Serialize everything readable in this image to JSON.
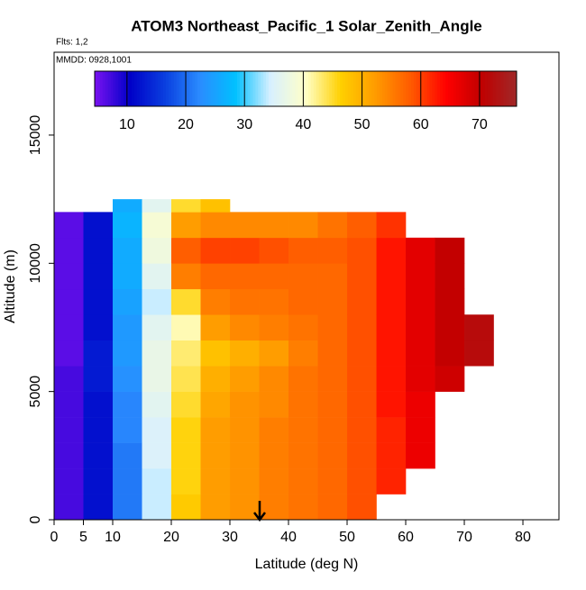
{
  "chart_data": {
    "type": "heatmap",
    "title": "ATOM3 Northeast_Pacific_1 Solar_Zenith_Angle",
    "subtitle": "Flts: 1,2",
    "annotation": "MMDD: 0928,1001",
    "x_label": "Latitude (deg N)",
    "y_label": "Altitude (m)",
    "xlim": [
      0,
      86.15
    ],
    "ylim": [
      0,
      18230
    ],
    "xticks": [
      0,
      5,
      10,
      20,
      30,
      40,
      50,
      60,
      70,
      80
    ],
    "yticks": [
      0,
      5000,
      10000,
      15000
    ],
    "x_edges": [
      0,
      5,
      10,
      15,
      20,
      25,
      30,
      35,
      40,
      45,
      50,
      55,
      60,
      65,
      70,
      75
    ],
    "y_edges": [
      0,
      1000,
      2000,
      3000,
      4000,
      5000,
      6000,
      7000,
      8000,
      9000,
      10000,
      11000,
      12000,
      12500
    ],
    "z": [
      [
        7,
        12,
        21,
        34,
        47,
        52,
        53,
        55,
        56,
        57,
        59,
        null,
        null,
        null,
        null
      ],
      [
        7,
        12,
        21,
        34,
        46,
        52,
        53,
        55,
        56,
        57,
        59,
        62,
        null,
        null,
        null
      ],
      [
        7,
        12,
        21,
        35,
        46,
        52,
        53,
        55,
        56,
        57,
        59,
        62,
        66,
        null,
        null
      ],
      [
        7,
        12,
        22,
        35,
        46,
        52,
        53,
        55,
        56,
        57,
        59,
        62,
        66,
        null,
        null
      ],
      [
        7,
        12,
        22,
        36,
        45,
        51,
        53,
        54,
        56,
        57,
        59,
        63,
        66,
        null,
        null
      ],
      [
        7,
        13,
        23,
        37,
        44,
        50,
        52,
        54,
        56,
        57,
        59,
        63,
        67,
        69,
        null
      ],
      [
        6,
        13,
        24,
        37,
        43,
        48,
        50,
        52,
        55,
        57,
        59,
        63,
        67,
        70,
        72
      ],
      [
        6,
        12,
        24,
        36,
        41,
        52,
        54,
        55,
        56,
        57,
        59,
        63,
        67,
        70,
        72
      ],
      [
        6,
        12,
        25,
        34,
        45,
        55,
        56,
        56,
        57,
        57,
        59,
        63,
        67,
        70,
        null
      ],
      [
        6,
        12,
        26,
        36,
        55,
        57,
        57,
        57,
        57,
        57,
        59,
        63,
        67,
        70,
        null
      ],
      [
        6,
        12,
        26,
        38,
        58,
        60,
        60,
        59,
        58,
        58,
        59,
        63,
        67,
        70,
        null
      ],
      [
        6,
        12,
        27,
        39,
        52,
        54,
        54,
        54,
        54,
        56,
        58,
        61,
        null,
        null,
        null
      ],
      [
        null,
        null,
        26,
        36,
        45,
        48,
        null,
        null,
        null,
        null,
        null,
        null,
        null,
        null,
        null
      ]
    ],
    "colorbar_ticks": [
      10,
      20,
      30,
      40,
      50,
      60,
      70
    ],
    "clim": [
      4.5,
      76.3
    ],
    "colormap": [
      "#7a12f0",
      "#0000c8",
      "#0a3fdf",
      "#2a8cff",
      "#00c0ff",
      "#d8f0ff",
      "#ffffc8",
      "#ffd000",
      "#ff9a00",
      "#ff5a00",
      "#ff0000",
      "#c00000",
      "#a02828"
    ]
  }
}
